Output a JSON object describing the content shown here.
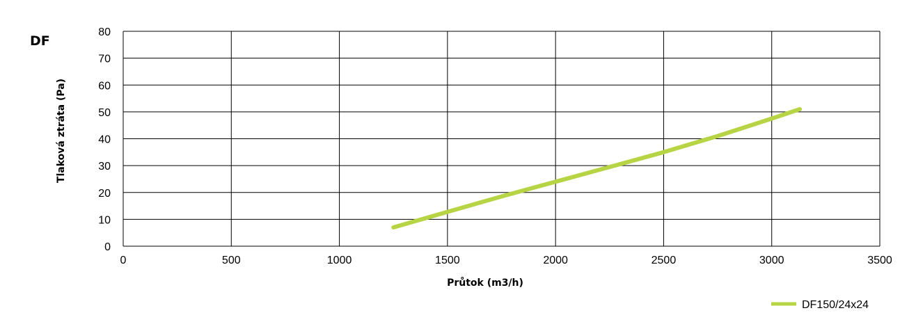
{
  "chart_data": {
    "type": "line",
    "title": "DF",
    "xlabel": "Průtok (m3/h)",
    "ylabel": "Tlaková ztráta (Pa)",
    "xlim": [
      0,
      3500
    ],
    "ylim": [
      0,
      80
    ],
    "xticks": [
      0,
      500,
      1000,
      1500,
      2000,
      2500,
      3000,
      3500
    ],
    "yticks": [
      0,
      10,
      20,
      30,
      40,
      50,
      60,
      70,
      80
    ],
    "grid": true,
    "legend_position": "bottom-right",
    "series": [
      {
        "name": "DF150/24x24",
        "color": "#b7d444",
        "x": [
          1250,
          1500,
          1750,
          2000,
          2250,
          2500,
          2750,
          3000,
          3130
        ],
        "y": [
          7,
          12.8,
          18.5,
          24,
          29.5,
          35,
          41,
          47.5,
          51
        ]
      }
    ]
  }
}
